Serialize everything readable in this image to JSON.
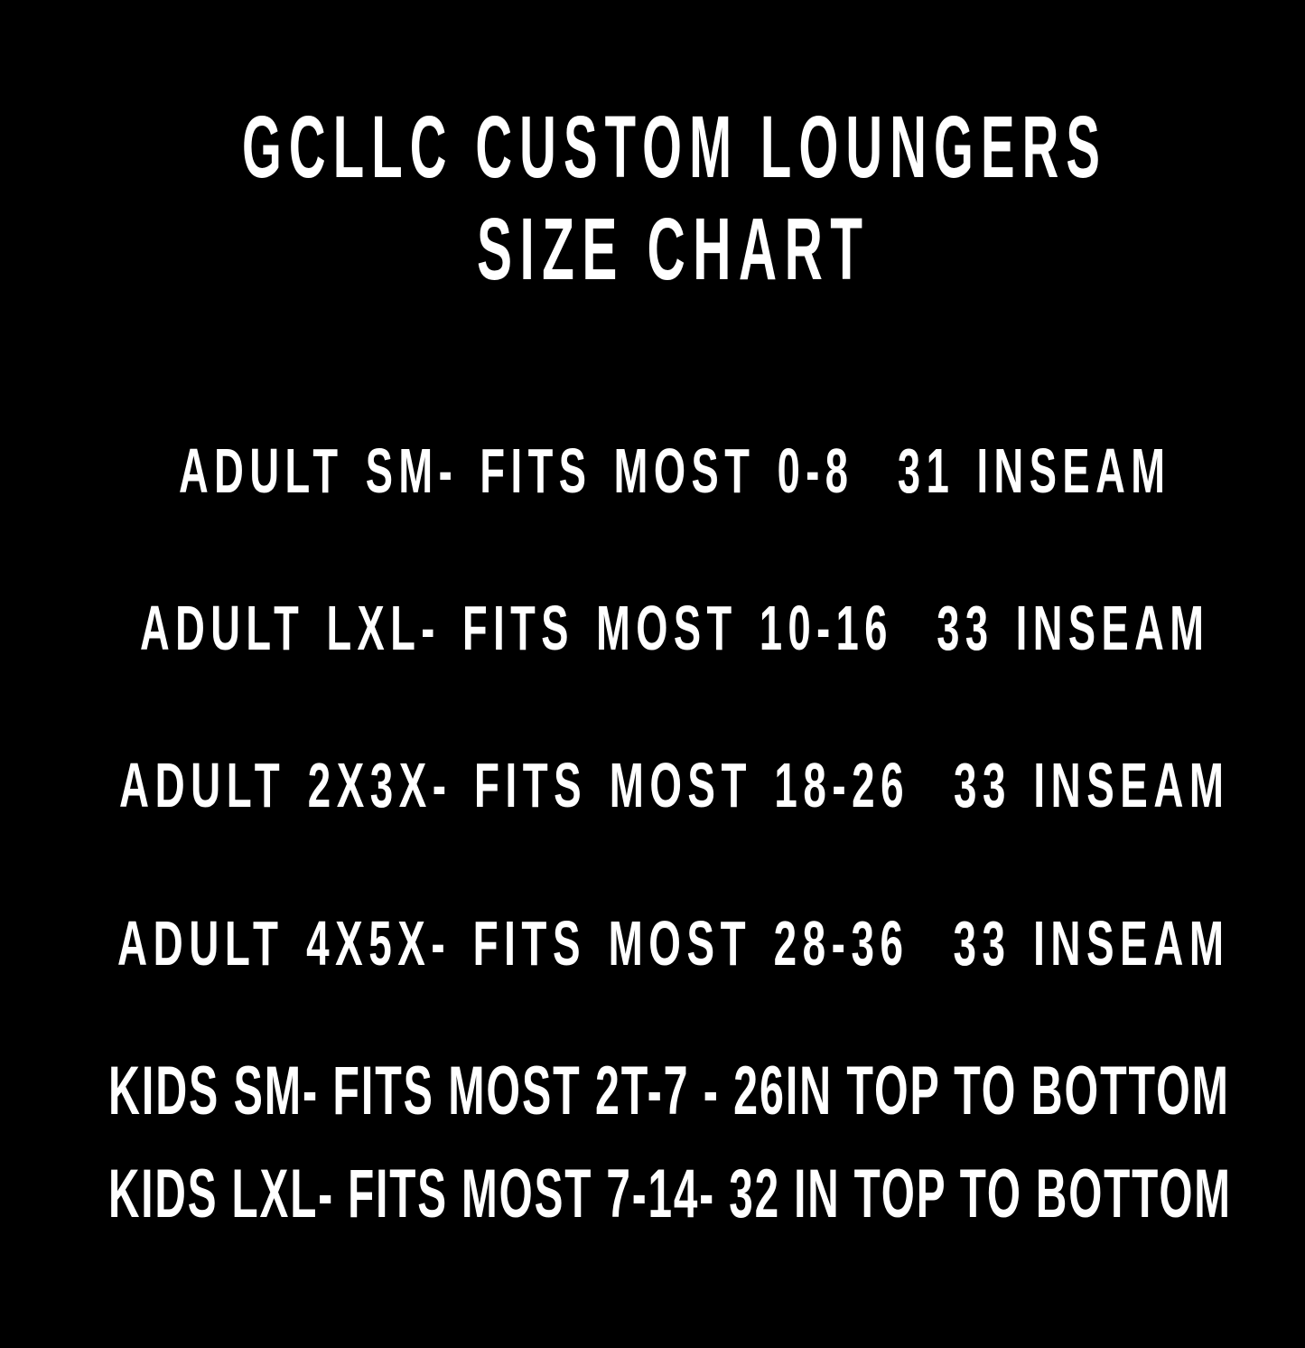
{
  "colors": {
    "background": "#000000",
    "text": "#ffffff"
  },
  "title": {
    "line1": "GCLLC CUSTOM LOUNGERS",
    "line2": "SIZE CHART"
  },
  "sizes": [
    "ADULT SM- FITS MOST 0-8  31 INSEAM",
    "ADULT LXL- FITS MOST 10-16  33 INSEAM",
    "ADULT 2X3X- FITS MOST 18-26  33 INSEAM",
    "ADULT 4X5X- FITS MOST 28-36  33 INSEAM",
    "KIDS SM- FITS MOST 2T-7 - 26IN TOP TO BOTTOM",
    "KIDS LXL- FITS MOST 7-14- 32 IN TOP TO BOTTOM"
  ]
}
